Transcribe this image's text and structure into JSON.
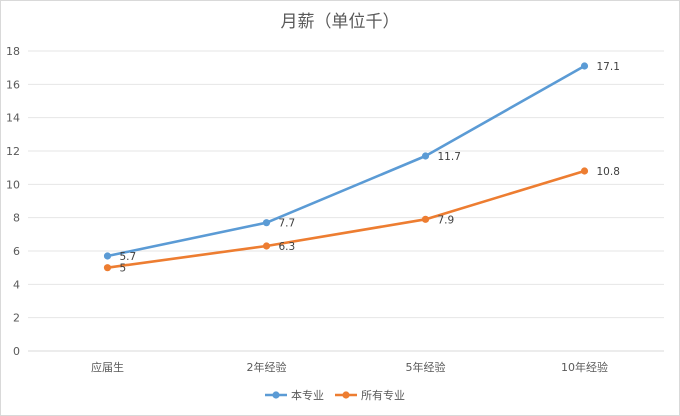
{
  "chart_data": {
    "type": "line",
    "title": "月薪（单位千）",
    "categories": [
      "应届生",
      "2年经验",
      "5年经验",
      "10年经验"
    ],
    "yticks": [
      "0",
      "2",
      "4",
      "6",
      "8",
      "10",
      "12",
      "14",
      "16",
      "18"
    ],
    "ylim": [
      0,
      18
    ],
    "grid": true,
    "legend_position": "bottom",
    "series": [
      {
        "name": "本专业",
        "color": "#5B9BD5",
        "values": [
          5.7,
          7.7,
          11.7,
          17.1
        ],
        "labels": [
          "5.7",
          "7.7",
          "11.7",
          "17.1"
        ]
      },
      {
        "name": "所有专业",
        "color": "#ED7D31",
        "values": [
          5,
          6.3,
          7.9,
          10.8
        ],
        "labels": [
          "5",
          "6.3",
          "7.9",
          "10.8"
        ]
      }
    ]
  }
}
